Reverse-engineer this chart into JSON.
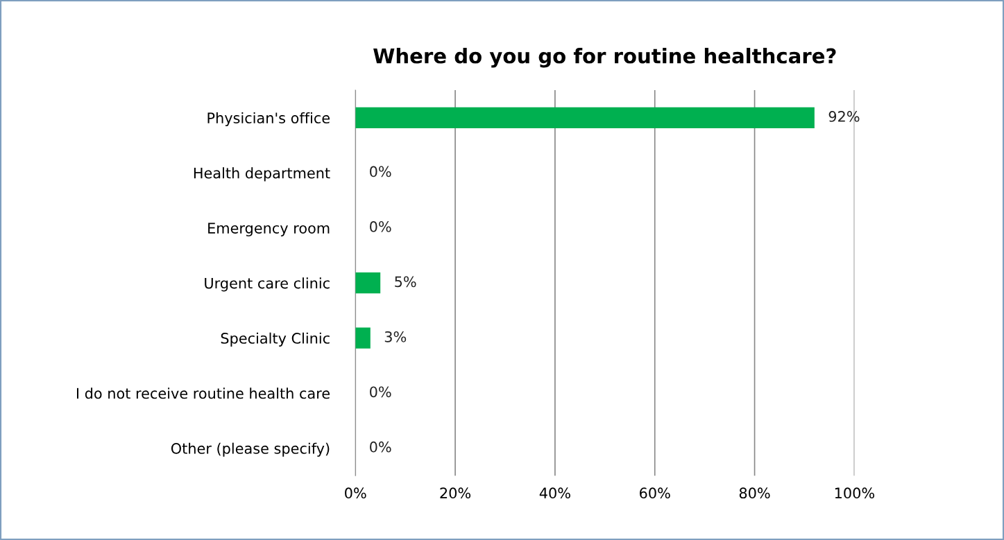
{
  "chart_data": {
    "type": "bar",
    "orientation": "horizontal",
    "title": "Where do you go for routine healthcare?",
    "categories": [
      "Physician's office",
      "Health department",
      "Emergency room",
      "Urgent care clinic",
      "Specialty Clinic",
      "I do not receive routine health care",
      "Other (please specify)"
    ],
    "values": [
      92,
      0,
      0,
      5,
      3,
      0,
      0
    ],
    "value_labels": [
      "92%",
      "0%",
      "0%",
      "5%",
      "3%",
      "0%",
      "0%"
    ],
    "color": "#00b050",
    "xlim": [
      0,
      100
    ],
    "xticks": [
      {
        "value": 0,
        "label": "0%"
      },
      {
        "value": 20,
        "label": "20%"
      },
      {
        "value": 40,
        "label": "40%"
      },
      {
        "value": 60,
        "label": "60%"
      },
      {
        "value": 80,
        "label": "80%"
      },
      {
        "value": 100,
        "label": "100%"
      }
    ],
    "grid": "x",
    "legend": false
  }
}
